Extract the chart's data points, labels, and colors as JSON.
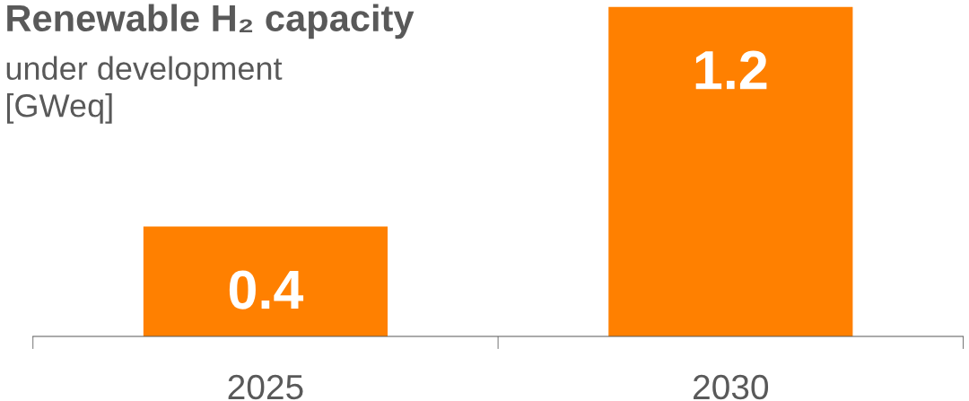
{
  "chart_data": {
    "type": "bar",
    "title": "Renewable H₂ capacity",
    "subtitle": "under development\n[GWeq]",
    "categories": [
      "2025",
      "2030"
    ],
    "values": [
      0.4,
      1.2
    ],
    "color": "#ff8000",
    "data_labels": true,
    "grid": false,
    "legend": false
  }
}
